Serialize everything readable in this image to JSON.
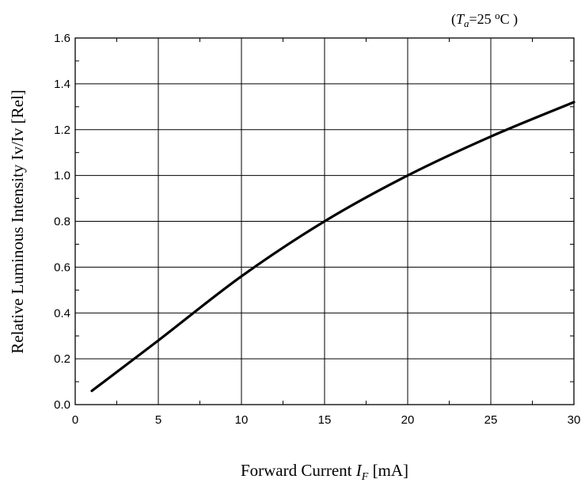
{
  "chart_data": {
    "type": "line",
    "title": "",
    "annotation": {
      "open": "(",
      "symbol": "T",
      "subscript": "a",
      "value": "=25 ",
      "degree": "o",
      "unit": "C )"
    },
    "xlabel": {
      "prefix": "Forward Current  ",
      "symbol": "I",
      "subscript": "F",
      "unit": " [mA]"
    },
    "ylabel": "Relative Luminous Intensity Iv/Iv [Rel]",
    "xlim": [
      0,
      30
    ],
    "ylim": [
      0,
      1.6
    ],
    "x_ticks": [
      "0",
      "5",
      "10",
      "15",
      "20",
      "25",
      "30"
    ],
    "y_ticks": [
      "0.0",
      "0.2",
      "0.4",
      "0.6",
      "0.8",
      "1.0",
      "1.2",
      "1.4",
      "1.6"
    ],
    "grid": true,
    "series": [
      {
        "x": [
          1,
          5,
          10,
          15,
          20,
          25,
          30
        ],
        "y": [
          0.06,
          0.28,
          0.56,
          0.8,
          1.0,
          1.17,
          1.32
        ]
      }
    ]
  }
}
